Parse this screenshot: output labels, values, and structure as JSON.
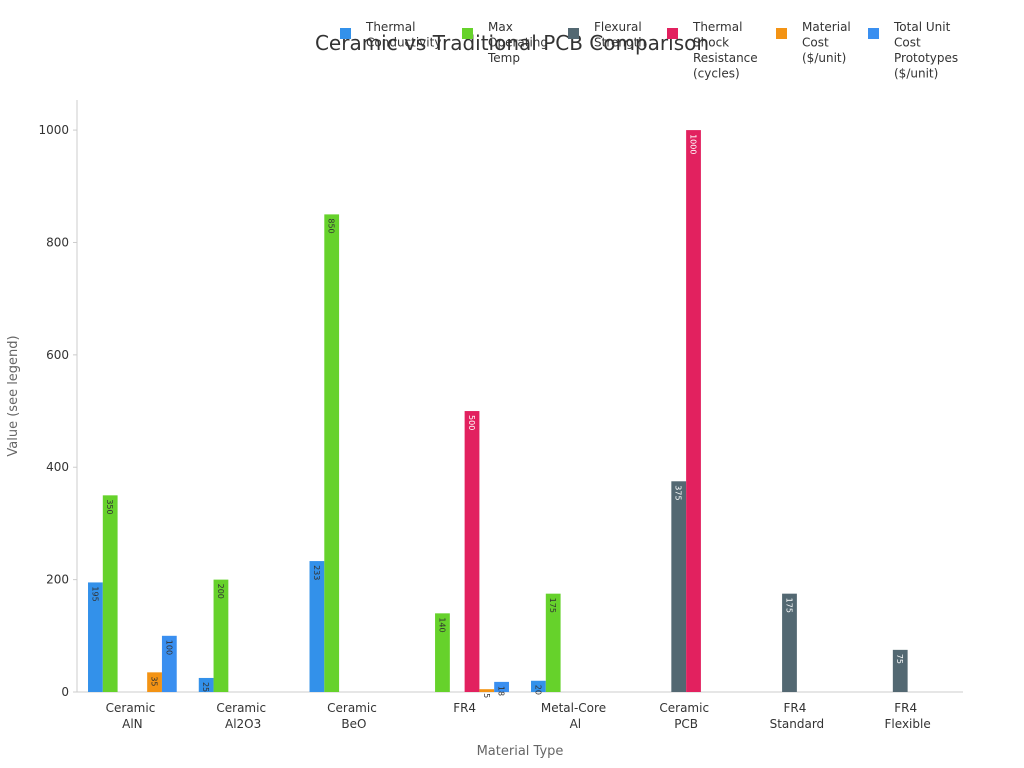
{
  "chart_data": {
    "type": "bar",
    "title": "Ceramic vs Traditional PCB Comparison",
    "x_label": "Material Type",
    "y_label": "Value (see legend)",
    "categories": [
      "Ceramic AlN",
      "Ceramic Al2O3",
      "Ceramic BeO",
      "FR4",
      "Metal-Core Al",
      "Ceramic PCB",
      "FR4 Standard",
      "FR4 Flexible"
    ],
    "series": [
      {
        "name": "Thermal Conductivity",
        "color": "#3391ea",
        "values": [
          195,
          25,
          233,
          null,
          20,
          null,
          null,
          null
        ]
      },
      {
        "name": "Max Operating Temp",
        "color": "#66d22b",
        "values": [
          350,
          200,
          850,
          140,
          175,
          null,
          null,
          null
        ]
      },
      {
        "name": "Flexural Strength",
        "color": "#536872",
        "values": [
          null,
          null,
          null,
          null,
          null,
          375,
          175,
          75
        ]
      },
      {
        "name": "Thermal Shock Resistance (cycles)",
        "color": "#e2215f",
        "values": [
          null,
          null,
          null,
          500,
          null,
          1000,
          null,
          null
        ]
      },
      {
        "name": "Material Cost ($/unit)",
        "color": "#f39314",
        "values": [
          35,
          null,
          null,
          5,
          null,
          null,
          null,
          null
        ]
      },
      {
        "name": "Total Unit Cost Prototypes ($/unit)",
        "color": "#3a8ff0",
        "values": [
          100,
          null,
          null,
          18,
          null,
          null,
          null,
          null
        ]
      }
    ],
    "ylim": [
      0,
      1050
    ],
    "yticks": [
      0,
      200,
      400,
      600,
      800,
      1000
    ],
    "grid": false,
    "legend": "top"
  }
}
